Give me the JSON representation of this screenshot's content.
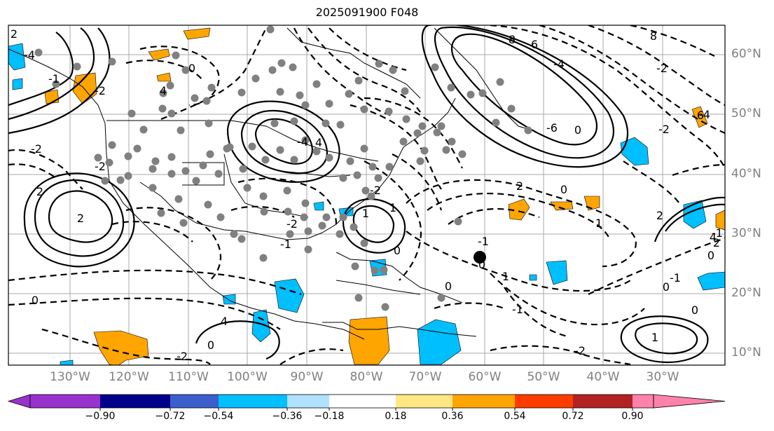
{
  "title": "2025091900 F048",
  "latitude_labels": [
    "60°N",
    "50°N",
    "40°N",
    "30°N",
    "20°N",
    "10°N"
  ],
  "longitude_labels": [
    "130°W",
    "120°W",
    "110°W",
    "100°W",
    "90°W",
    "80°W",
    "70°W",
    "60°W",
    "50°W",
    "40°W",
    "30°W"
  ],
  "contour_labels": [
    "2",
    "0",
    "-4",
    "-2",
    "-1",
    "-2",
    "2",
    "2",
    "-2",
    "0",
    "4",
    "8",
    "6",
    "-4",
    "-6",
    "0",
    "-2",
    "6",
    "-2",
    "8",
    "-4",
    "4",
    "-2",
    "-1",
    "-2",
    "1",
    "1",
    "0",
    "-1",
    "0",
    "2",
    "0",
    "1",
    "2",
    "-4",
    "2",
    "0",
    "0",
    "-1",
    "0",
    "1",
    "-2",
    "-1",
    "0",
    "1",
    "4",
    "-1",
    "0",
    "4",
    "-2"
  ],
  "colorbar": {
    "ticks": [
      "−0.90",
      "−0.72",
      "−0.54",
      "−0.36",
      "−0.18",
      "0.18",
      "0.36",
      "0.54",
      "0.72",
      "0.90"
    ],
    "colors": [
      "#9932cc",
      "#00008b",
      "#3a5fcd",
      "#00bfff",
      "#b0e2ff",
      "#ffffff",
      "#ffe784",
      "#ffa500",
      "#ff3c00",
      "#b22222",
      "#ff82ab"
    ]
  },
  "colors": {
    "negative_fill": "#00bfff",
    "positive_fill": "#ffa500",
    "station_dot": "#808080",
    "frame": "#000000",
    "grid": "#a9a9a9"
  }
}
